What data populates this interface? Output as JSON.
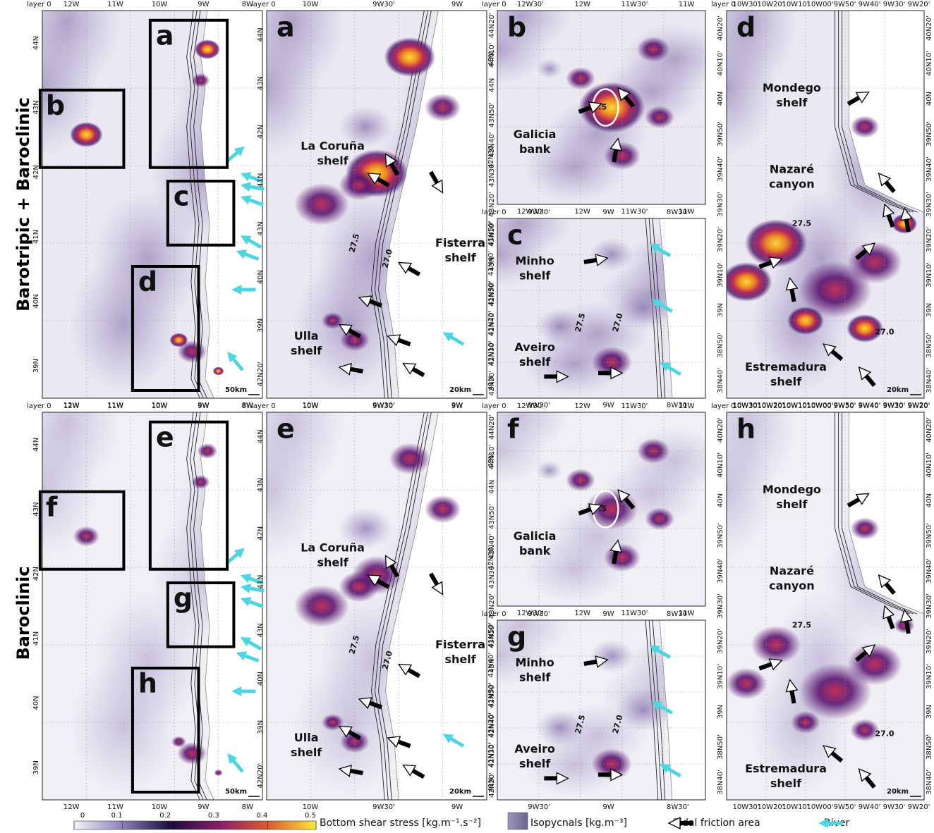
{
  "row_labels": [
    "Barotripic + Baroclinic",
    "Baroclinic"
  ],
  "rows": [
    {
      "overview": {
        "corner": "layer 0",
        "top_ticks": [
          "12W",
          "11W",
          "10W",
          "9W",
          "8W"
        ],
        "bottom_ticks": [
          "12W",
          "11W",
          "10W",
          "9W",
          "8W"
        ],
        "left_ticks": [
          "44N",
          "43N",
          "42N",
          "41N",
          "40N",
          "39N"
        ],
        "box_labels": [
          "a",
          "b",
          "c",
          "d"
        ],
        "scale": "50km"
      },
      "north": {
        "letter": "a",
        "corner": "layer 0",
        "top_ticks": [
          "10W",
          "9W30'",
          "9W"
        ],
        "bottom_ticks": [
          "10W",
          "9W30'",
          "9W"
        ],
        "left_ticks": [
          "44N",
          "43N",
          "42N",
          "41N",
          "43N",
          "40N",
          "39N",
          "42N20'"
        ],
        "right_ticks": [
          "44N20'",
          "44N10'",
          "44N",
          "43N50'",
          "43N40'",
          "43N30'",
          "43N20'",
          "43N10'",
          "43N",
          "42N50'",
          "42N40'",
          "42N30'",
          "42N20'"
        ],
        "labels": [
          [
            "La Coruña",
            "shelf"
          ],
          [
            "Fisterra",
            "shelf"
          ],
          [
            "Ulla",
            "shelf"
          ]
        ],
        "isopycnals": [
          "27.5",
          "27.0"
        ],
        "scale": "20km"
      },
      "bank": {
        "letter": "b",
        "corner": "layer 0",
        "top_ticks": [
          "12W30'",
          "12W",
          "11W30'",
          "11W"
        ],
        "bottom_ticks": [
          "12W30'",
          "12W",
          "11W30'",
          "11W"
        ],
        "left_ticks": [
          "43N",
          "42N30'"
        ],
        "labels": [
          [
            "Galicia",
            "bank"
          ]
        ],
        "isopycnals": [
          "27.5"
        ]
      },
      "central": {
        "letter": "c",
        "corner": "layer 0",
        "top_ticks": [
          "9W30'",
          "9W",
          "8W30'"
        ],
        "bottom_ticks": [
          "9W30'",
          "9W",
          "8W30'"
        ],
        "left_ticks": [
          "41N50'",
          "41N40'",
          "41N30'",
          "41N20'",
          "41N10'",
          "41N"
        ],
        "labels": [
          [
            "Minho",
            "shelf"
          ],
          [
            "Aveiro",
            "shelf"
          ]
        ],
        "isopycnals": [
          "27.5",
          "27.0"
        ]
      },
      "south": {
        "letter": "d",
        "corner": "layer 0",
        "top_ticks": [
          "10W30'",
          "10W20'",
          "10W10'",
          "10W00'",
          "9W50'",
          "9W40'",
          "9W30'",
          "9W20'"
        ],
        "bottom_ticks": [
          "10W30'",
          "10W20'",
          "10W10'",
          "10W00'",
          "9W50'",
          "9W40'",
          "9W30'",
          "9W20'"
        ],
        "left_ticks": [
          "40N20'",
          "40N10'",
          "40N",
          "39N50'",
          "39N40'",
          "39N30'",
          "39N20'",
          "39N10'",
          "39N",
          "38N50'",
          "38N40'"
        ],
        "right_ticks": [
          "40N20'",
          "40N10'",
          "40N",
          "39N50'",
          "39N40'",
          "39N30'",
          "39N20'",
          "39N10'",
          "39N",
          "38N50'",
          "38N40'"
        ],
        "labels": [
          [
            "Mondego",
            "shelf"
          ],
          [
            "Nazaré",
            "canyon"
          ],
          [
            "Estremadura",
            "shelf"
          ]
        ],
        "isopycnals": [
          "27.5",
          "27.0"
        ],
        "scale": "20km"
      }
    },
    {
      "overview": {
        "corner": "layer 0",
        "top_ticks": [
          "12W",
          "11W",
          "10W",
          "9W",
          "8W"
        ],
        "bottom_ticks": [
          "12W",
          "11W",
          "10W",
          "9W",
          "8W"
        ],
        "left_ticks": [
          "44N",
          "43N",
          "42N",
          "41N",
          "40N",
          "39N"
        ],
        "box_labels": [
          "e",
          "f",
          "g",
          "h"
        ],
        "scale": "50km"
      },
      "north": {
        "letter": "e",
        "corner": "layer 0",
        "top_ticks": [
          "10W",
          "9W30'",
          "9W"
        ],
        "bottom_ticks": [
          "10W",
          "9W30'",
          "9W"
        ],
        "left_ticks": [
          "44N",
          "43N",
          "42N",
          "41N",
          "43N",
          "40N",
          "39N",
          "42N20'"
        ],
        "right_ticks": [
          "44N20'",
          "44N10'",
          "44N",
          "43N50'",
          "43N40'",
          "43N30'",
          "43N20'",
          "43N10'",
          "43N",
          "42N50'",
          "42N40'",
          "42N30'",
          "42N20'"
        ],
        "labels": [
          [
            "La Coruña",
            "shelf"
          ],
          [
            "Fisterra",
            "shelf"
          ],
          [
            "Ulla",
            "shelf"
          ]
        ],
        "isopycnals": [
          "27.5",
          "27.0"
        ],
        "scale": "20km"
      },
      "bank": {
        "letter": "f",
        "corner": "layer 0",
        "top_ticks": [
          "12W30'",
          "12W",
          "11W30'",
          "11W"
        ],
        "bottom_ticks": [
          "12W30'",
          "12W",
          "11W30'",
          "11W"
        ],
        "left_ticks": [
          "43N",
          "42N30'"
        ],
        "labels": [
          [
            "Galicia",
            "bank"
          ]
        ],
        "isopycnals": [
          "27.5"
        ]
      },
      "central": {
        "letter": "g",
        "corner": "layer 0",
        "top_ticks": [
          "9W30'",
          "9W",
          "8W30'"
        ],
        "bottom_ticks": [
          "9W30'",
          "9W",
          "8W30'"
        ],
        "left_ticks": [
          "41N50'",
          "41N40'",
          "41N30'",
          "41N20'",
          "41N10'",
          "41N"
        ],
        "labels": [
          [
            "Minho",
            "shelf"
          ],
          [
            "Aveiro",
            "shelf"
          ]
        ],
        "isopycnals": [
          "27.5",
          "27.0"
        ]
      },
      "south": {
        "letter": "h",
        "corner": "layer 0",
        "top_ticks": [
          "10W30'",
          "10W20'",
          "10W10'",
          "10W00'",
          "9W50'",
          "9W40'",
          "9W30'",
          "9W20'"
        ],
        "bottom_ticks": [
          "10W30'",
          "10W20'",
          "10W10'",
          "10W00'",
          "9W50'",
          "9W40'",
          "9W30'",
          "9W20'"
        ],
        "left_ticks": [
          "40N20'",
          "40N10'",
          "40N",
          "39N50'",
          "39N40'",
          "39N30'",
          "39N20'",
          "39N10'",
          "39N",
          "38N50'",
          "38N40'"
        ],
        "right_ticks": [
          "40N20'",
          "40N10'",
          "40N",
          "39N50'",
          "39N40'",
          "39N30'",
          "39N20'",
          "39N10'",
          "39N",
          "38N50'",
          "38N40'"
        ],
        "labels": [
          [
            "Mondego",
            "shelf"
          ],
          [
            "Nazaré",
            "canyon"
          ],
          [
            "Estremadura",
            "shelf"
          ]
        ],
        "isopycnals": [
          "27.5",
          "27.0"
        ],
        "scale": "20km"
      }
    }
  ],
  "legend": {
    "colorbar_ticks": [
      0,
      0.1,
      0.2,
      0.3,
      0.4,
      0.5
    ],
    "colorbar_label": "Bottom shear stress [kg.m⁻¹.s⁻²]",
    "isopycnals": "Isopycnals [kg.m⁻³]",
    "tidal": "Tidal friction area",
    "river": "River"
  }
}
